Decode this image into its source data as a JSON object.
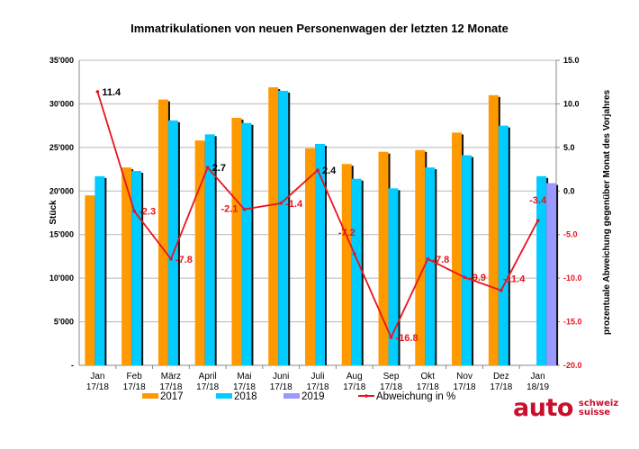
{
  "chart_data": {
    "type": "bar+line",
    "title": "Immatrikulationen von neuen Personenwagen der letzten 12 Monate",
    "ylabel": "Stück",
    "y2label": "prozentuale Abweichung gegenüber Monat des Vorjahres",
    "ylim": [
      0,
      35000
    ],
    "y2lim": [
      -20,
      15
    ],
    "yticks": [
      "-",
      "5'000",
      "10'000",
      "15'000",
      "20'000",
      "25'000",
      "30'000",
      "35'000"
    ],
    "y2ticks": [
      "-20.0",
      "-15.0",
      "-10.0",
      "-5.0",
      "0.0",
      "5.0",
      "10.0",
      "15.0"
    ],
    "grid": true,
    "legend_position": "bottom",
    "categories": [
      [
        "Jan",
        "17/18"
      ],
      [
        "Feb",
        "17/18"
      ],
      [
        "März",
        "17/18"
      ],
      [
        "April",
        "17/18"
      ],
      [
        "Mai",
        "17/18"
      ],
      [
        "Juni",
        "17/18"
      ],
      [
        "Juli",
        "17/18"
      ],
      [
        "Aug",
        "17/18"
      ],
      [
        "Sep",
        "17/18"
      ],
      [
        "Okt",
        "17/18"
      ],
      [
        "Nov",
        "17/18"
      ],
      [
        "Dez",
        "17/18"
      ],
      [
        "Jan",
        "18/19"
      ]
    ],
    "series": [
      {
        "name": "2017",
        "type": "bar",
        "color": "#ff9900",
        "values": [
          19500,
          22700,
          30500,
          25800,
          28400,
          31900,
          24900,
          23100,
          24500,
          24700,
          26700,
          31000,
          null
        ]
      },
      {
        "name": "2018",
        "type": "bar",
        "color": "#00ccff",
        "values": [
          21700,
          22300,
          28100,
          26500,
          27800,
          31500,
          25400,
          21400,
          20300,
          22700,
          24100,
          27500,
          21700
        ]
      },
      {
        "name": "2019",
        "type": "bar",
        "color": "#9999ff",
        "values": [
          null,
          null,
          null,
          null,
          null,
          null,
          null,
          null,
          null,
          null,
          null,
          null,
          20900
        ]
      },
      {
        "name": "Abweichung in %",
        "type": "line",
        "axis": "right",
        "color": "#e8141c",
        "values": [
          11.4,
          -2.3,
          -7.8,
          2.7,
          -2.1,
          -1.4,
          2.4,
          -7.2,
          -16.8,
          -7.8,
          -9.9,
          -11.4,
          -3.4
        ],
        "labels": [
          "11.4",
          "-2.3",
          "-7.8",
          "2.7",
          "-2.1",
          "-1.4",
          "2.4",
          "-7.2",
          "-16.8",
          "-7.8",
          "-9.9",
          "-11.4",
          "-3.4"
        ]
      }
    ]
  },
  "logo": {
    "brand": "auto",
    "line1": "schweiz",
    "line2": "suisse",
    "color": "#c8102e"
  }
}
